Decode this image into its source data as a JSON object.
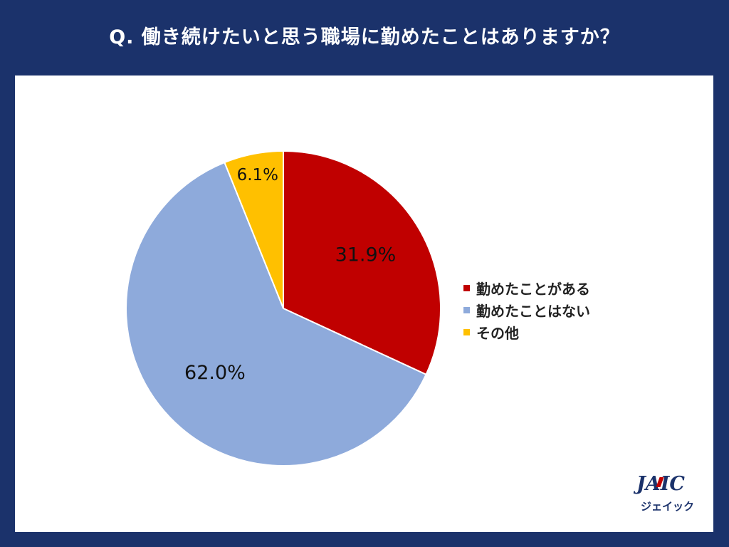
{
  "title": "Q. 働き続けたいと思う職場に勤めたことはありますか？",
  "colors": {
    "background": "#1b326b",
    "panel": "#ffffff",
    "slice_1": "#c00000",
    "slice_2": "#8eaadb",
    "slice_3": "#ffc000"
  },
  "chart_data": {
    "type": "pie",
    "title": "Q. 働き続けたいと思う職場に勤めたことはありますか？",
    "start_angle": "12 o'clock, clockwise",
    "legend_position": "right",
    "slices": [
      {
        "label": "勤めたことがある",
        "value": 31.9,
        "value_label": "31.9%",
        "color": "#c00000"
      },
      {
        "label": "勤めたことはない",
        "value": 62.0,
        "value_label": "62.0%",
        "color": "#8eaadb"
      },
      {
        "label": "その他",
        "value": 6.1,
        "value_label": "6.1%",
        "color": "#ffc000"
      }
    ]
  },
  "logo": {
    "main": "JAIC",
    "sub": "ジェイック"
  }
}
